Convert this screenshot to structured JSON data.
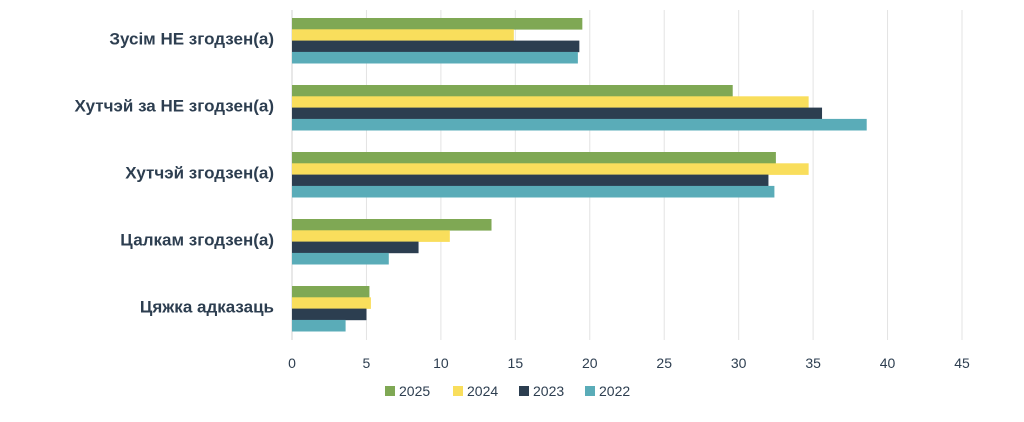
{
  "chart_data": {
    "type": "bar",
    "orientation": "horizontal",
    "categories": [
      "Зусім НЕ згодзен(а)",
      "Хутчэй за НЕ згодзен(а)",
      "Хутчэй згодзен(а)",
      "Цалкам згодзен(а)",
      "Цяжка адказаць"
    ],
    "series": [
      {
        "name": "2025",
        "color": "#7fa854",
        "values": [
          19.5,
          29.6,
          32.5,
          13.4,
          5.2
        ]
      },
      {
        "name": "2024",
        "color": "#f9de5c",
        "values": [
          14.9,
          34.7,
          34.7,
          10.6,
          5.3
        ]
      },
      {
        "name": "2023",
        "color": "#2c3e50",
        "values": [
          19.3,
          35.6,
          32.0,
          8.5,
          5.0
        ]
      },
      {
        "name": "2022",
        "color": "#5aacb8",
        "values": [
          19.2,
          38.6,
          32.4,
          6.5,
          3.6
        ]
      }
    ],
    "xlim": [
      0,
      45
    ],
    "xticks": [
      "0",
      "5",
      "10",
      "15",
      "20",
      "25",
      "30",
      "35",
      "40",
      "45"
    ],
    "grid": true,
    "legend_position": "bottom"
  }
}
